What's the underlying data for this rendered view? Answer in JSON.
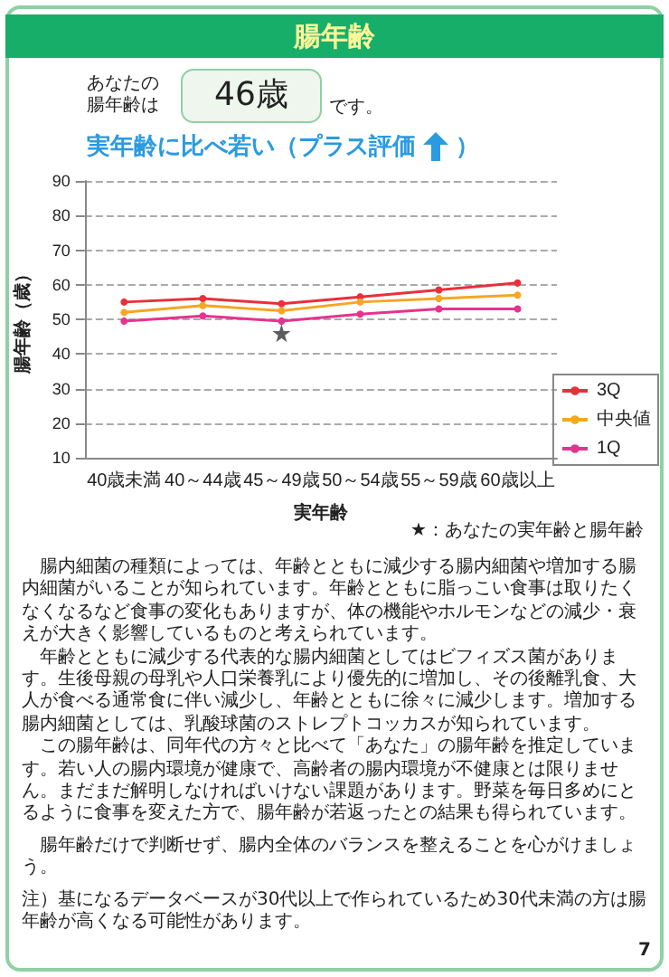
{
  "chart_data": {
    "type": "line",
    "title": "腸年齢",
    "xlabel": "実年齢",
    "ylabel": "腸年齢（歳）",
    "categories": [
      "40歳未満",
      "40～44歳",
      "45～49歳",
      "50～54歳",
      "55～59歳",
      "60歳以上"
    ],
    "series": [
      {
        "name": "3Q",
        "color": "#e8303a",
        "values": [
          55,
          56,
          54.5,
          56.5,
          58.5,
          60.5
        ]
      },
      {
        "name": "中央値",
        "color": "#f5a623",
        "values": [
          52,
          54,
          52.5,
          55,
          56,
          57
        ]
      },
      {
        "name": "1Q",
        "color": "#e6338f",
        "values": [
          49.5,
          51,
          49.5,
          51.5,
          53,
          53
        ]
      },
      {
        "type": "scatter",
        "marker": "star",
        "color": "#333333",
        "x": [
          "45～49歳"
        ],
        "values": [
          46
        ]
      }
    ],
    "ylim": [
      10,
      90
    ],
    "yticks": [
      10,
      20,
      30,
      40,
      50,
      60,
      70,
      80,
      90
    ],
    "grid": "y",
    "legend": "right",
    "marker": "circle",
    "line_style": "solid",
    "annotations": [
      "あなたの腸年齢は",
      "46歳",
      "です。",
      "実年齢に比べ若い（プラス評価）",
      "★：あなたの実年齢と腸年齢",
      "腸内細菌の種類によっては、年齢とともに減少する腸内細菌や増加する腸内細菌がいることが知られています。年齢とともに脂っこい食事は取りたくなくなるなど食事の変化もありますが、体の機能やホルモンなどの減少・衰えが大きく影響しているものと考えられています。",
      "年齢とともに減少する代表的な腸内細菌としてはビフィズス菌があります。生後母親の母乳や人口栄養乳により優先的に増加し、その後離乳食、大人が食べる通常食に伴い減少し、年齢とともに徐々に減少します。増加する腸内細菌としては、乳酸球菌のストレプトコッカスが知られています。",
      "この腸年齢は、同年代の方々と比べて「あなた」の腸年齢を推定しています。若い人の腸内環境が健康で、高齢者の腸内環境が不健康とは限りません。まだまだ解明しなければいけない課題があります。野菜を毎日多めにとるように食事を変えた方で、腸年齢が若返ったとの結果も得られています。",
      "腸年齢だけで判断せず、腸内全体のバランスを整えることを心がけましょう。",
      "注）基になるデータベースが30代以上で作られているため30代未満の方は腸年齢が高くなる可能性があります。",
      "7"
    ]
  }
}
